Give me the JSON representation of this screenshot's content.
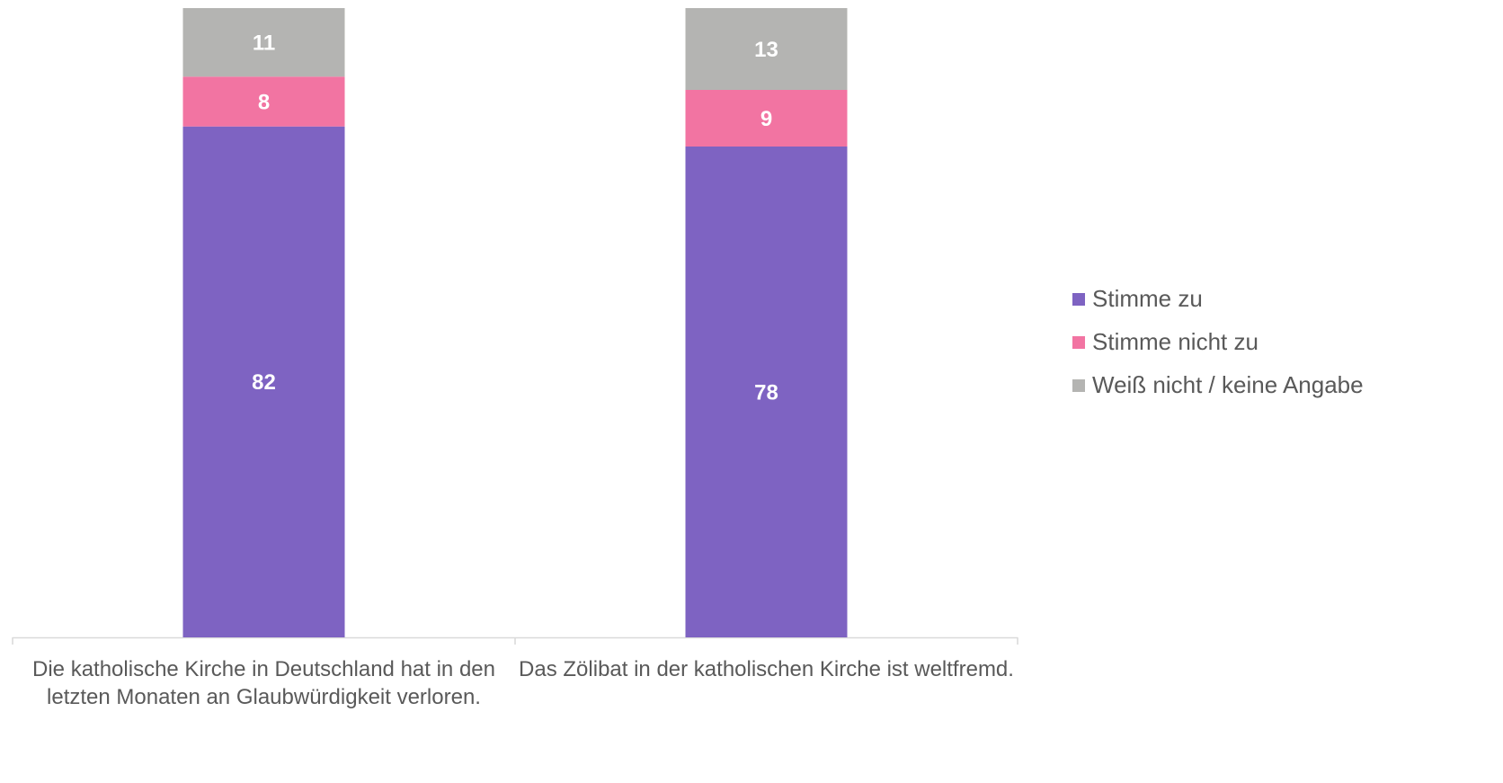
{
  "chart_data": {
    "type": "bar",
    "stacking": "percent",
    "categories": [
      "Die katholische Kirche in Deutschland hat in den letzten Monaten an Glaubwürdigkeit verloren.",
      "Das Zölibat in der katholischen Kirche ist weltfremd."
    ],
    "series": [
      {
        "name": "Stimme zu",
        "color": "#7e63c2",
        "values": [
          82,
          78
        ]
      },
      {
        "name": "Stimme nicht zu",
        "color": "#f274a2",
        "values": [
          8,
          9
        ]
      },
      {
        "name": "Weiß nicht / keine Angabe",
        "color": "#b4b4b2",
        "values": [
          11,
          13
        ]
      }
    ],
    "ylim": [
      0,
      100
    ],
    "legend": "right"
  }
}
